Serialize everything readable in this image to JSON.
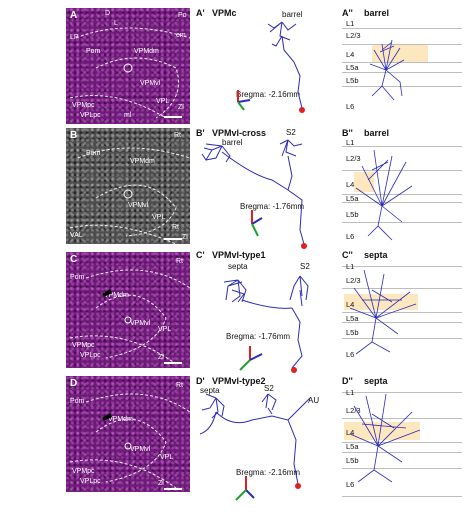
{
  "panel_a": {
    "letters": [
      "A",
      "B",
      "C",
      "D"
    ],
    "rows": [
      {
        "labels": [
          "D",
          "L",
          "LP",
          "Po",
          "Pom",
          "VPMdm",
          "VPMvl",
          "VPL",
          "VPMpc",
          "VPLpc",
          "em",
          "ml",
          "Zl"
        ]
      },
      {
        "labels": [
          "Rt",
          "Pom",
          "VPMdm",
          "VPMvl",
          "VPL",
          "VAL",
          "Rt",
          "Zl"
        ]
      },
      {
        "labels": [
          "Pom",
          "VPMdm",
          "Rt",
          "VPMvl",
          "VPL",
          "VPMpc",
          "VPLpc",
          "Zl"
        ]
      },
      {
        "labels": [
          "Pom",
          "VPMdm",
          "Rt",
          "VPMvl",
          "VPL",
          "VPMpc",
          "VPLpc",
          "Zl"
        ]
      }
    ]
  },
  "panel_b": {
    "rows": [
      {
        "letter": "A'",
        "title": "VPMc",
        "bregma": "Bregma: -2.16mm",
        "targets": [
          "barrel"
        ]
      },
      {
        "letter": "B'",
        "title": "VPMvl-cross",
        "bregma": "Bregma: -1.76mm",
        "targets": [
          "barrel",
          "S2"
        ]
      },
      {
        "letter": "C'",
        "title": "VPMvl-type1",
        "bregma": "Bregma: -1.76mm",
        "targets": [
          "septa",
          "S2"
        ]
      },
      {
        "letter": "D'",
        "title": "VPMvl-type2",
        "bregma": "Bregma: -2.16mm",
        "targets": [
          "septa",
          "S2",
          "AU"
        ]
      }
    ]
  },
  "panel_c": {
    "rows": [
      {
        "letter": "A''",
        "title": "barrel"
      },
      {
        "letter": "B''",
        "title": "barrel"
      },
      {
        "letter": "C''",
        "title": "septa"
      },
      {
        "letter": "D''",
        "title": "septa"
      }
    ],
    "layer_labels": [
      "L1",
      "L2/3",
      "L4",
      "L5a",
      "L5b",
      "L6"
    ]
  },
  "colors": {
    "neuron": "#2b2bb8",
    "soma": "#e02020",
    "l4_highlight": "#fbe3b3",
    "histology": "#6e1a78"
  }
}
